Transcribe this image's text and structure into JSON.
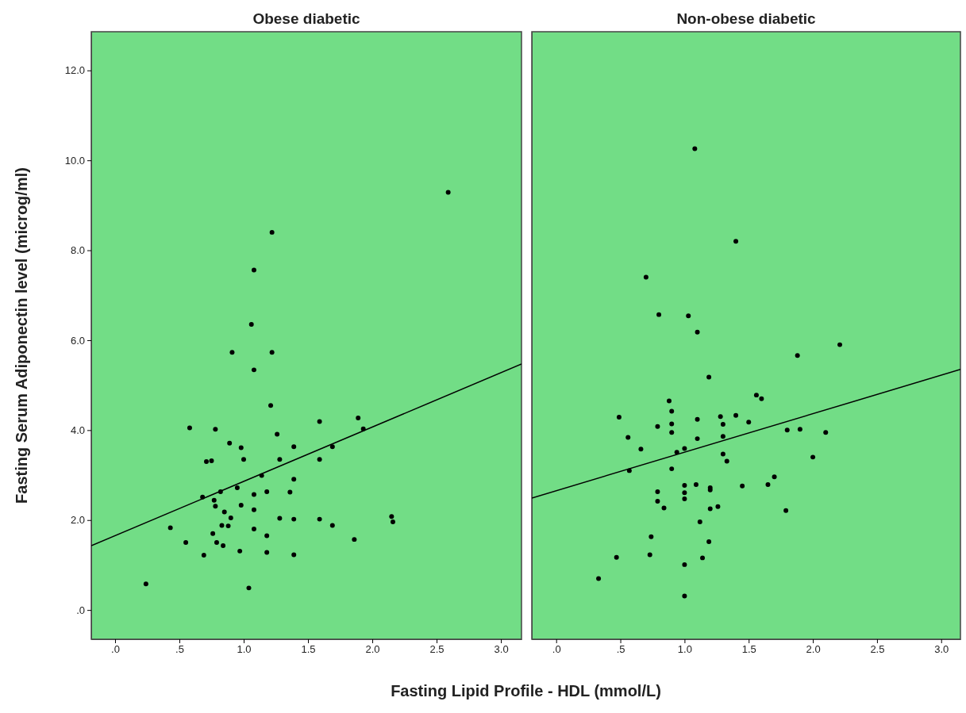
{
  "chart_data": [
    {
      "type": "scatter",
      "title": "Obese diabetic",
      "xlabel": "Fasting Lipid Profile - HDL (mmol/L)",
      "ylabel": "Fasting Serum Adiponectin level (microg/ml)",
      "grid": false,
      "xlim": [
        -0.185,
        3.16
      ],
      "ylim": [
        -0.65,
        12.86
      ],
      "xticks": [
        {
          "value": 0,
          "label": ".0"
        },
        {
          "value": 0.5,
          "label": ".5"
        },
        {
          "value": 1,
          "label": "1.0"
        },
        {
          "value": 1.5,
          "label": "1.5"
        },
        {
          "value": 2,
          "label": "2.0"
        },
        {
          "value": 2.5,
          "label": "2.5"
        },
        {
          "value": 3,
          "label": "3.0"
        }
      ],
      "yticks": [
        {
          "value": 0,
          "label": ".0"
        },
        {
          "value": 2,
          "label": "2.0"
        },
        {
          "value": 4,
          "label": "4.0"
        },
        {
          "value": 6,
          "label": "6.0"
        },
        {
          "value": 8,
          "label": "8.0"
        },
        {
          "value": 10,
          "label": "10.0"
        },
        {
          "value": 12,
          "label": "12.0"
        }
      ],
      "series": [
        {
          "type": "scatter",
          "marker": "circle",
          "color": "#000000",
          "x": [
            1.21,
            0.58,
            0.78,
            1.59,
            1.89,
            1.93,
            1.26,
            0.89,
            0.98,
            1.39,
            1.69,
            0.71,
            0.75,
            1.0,
            1.28,
            1.59,
            1.14,
            1.39,
            0.95,
            0.82,
            0.68,
            1.08,
            1.18,
            1.36,
            0.77,
            0.78,
            0.98,
            1.08,
            0.85,
            0.9,
            1.28,
            1.39,
            1.59,
            2.15,
            2.16,
            0.43,
            0.83,
            0.88,
            1.69,
            1.08,
            0.76,
            1.18,
            1.86,
            0.55,
            0.79,
            0.84,
            0.97,
            1.18,
            0.69,
            1.39,
            0.24,
            1.04,
            2.59,
            1.22,
            1.08,
            1.06,
            0.91,
            1.22,
            1.08
          ],
          "values": [
            4.55,
            4.05,
            4.02,
            4.19,
            4.27,
            4.03,
            3.91,
            3.71,
            3.61,
            3.63,
            3.63,
            3.3,
            3.32,
            3.35,
            3.35,
            3.35,
            2.99,
            2.91,
            2.72,
            2.63,
            2.51,
            2.57,
            2.63,
            2.62,
            2.44,
            2.31,
            2.33,
            2.23,
            2.18,
            2.05,
            2.04,
            2.02,
            2.02,
            2.08,
            1.96,
            1.83,
            1.88,
            1.87,
            1.88,
            1.8,
            1.7,
            1.65,
            1.57,
            1.5,
            1.5,
            1.43,
            1.31,
            1.28,
            1.22,
            1.23,
            0.58,
            0.49,
            9.29,
            8.4,
            7.56,
            6.35,
            5.73,
            5.73,
            5.34
          ]
        },
        {
          "type": "line",
          "color": "#000000",
          "x": [
            -0.185,
            3.16
          ],
          "values": [
            1.43,
            5.47
          ]
        }
      ]
    },
    {
      "type": "scatter",
      "title": "Non-obese diabetic",
      "grid": false,
      "tick_labels": "x",
      "xlim": [
        -0.19,
        3.15
      ],
      "ylim": [
        -0.65,
        12.86
      ],
      "xticks": [
        {
          "value": 0,
          "label": ".0"
        },
        {
          "value": 0.5,
          "label": ".5"
        },
        {
          "value": 1,
          "label": "1.0"
        },
        {
          "value": 1.5,
          "label": "1.5"
        },
        {
          "value": 2,
          "label": "2.0"
        },
        {
          "value": 2.5,
          "label": "2.5"
        },
        {
          "value": 3,
          "label": "3.0"
        }
      ],
      "series": [
        {
          "type": "scatter",
          "marker": "circle",
          "color": "#000000",
          "x": [
            1.08,
            1.4,
            0.7,
            0.8,
            1.03,
            1.1,
            2.21,
            1.88,
            1.19,
            1.56,
            1.6,
            0.88,
            0.9,
            0.49,
            1.1,
            1.28,
            1.4,
            1.5,
            0.79,
            0.9,
            1.3,
            0.9,
            1.8,
            1.9,
            2.1,
            0.56,
            1.1,
            1.3,
            0.66,
            1.0,
            0.94,
            1.3,
            1.33,
            2.0,
            0.9,
            0.57,
            1.7,
            1.65,
            1.45,
            1.0,
            1.09,
            1.2,
            1.2,
            0.79,
            1.0,
            1.0,
            0.79,
            0.84,
            1.26,
            1.2,
            1.79,
            1.12,
            0.74,
            1.19,
            0.47,
            0.73,
            1.14,
            1.0,
            0.33,
            1.0
          ],
          "values": [
            10.26,
            8.2,
            7.4,
            6.57,
            6.54,
            6.18,
            5.9,
            5.66,
            5.18,
            4.78,
            4.7,
            4.65,
            4.42,
            4.29,
            4.24,
            4.3,
            4.33,
            4.18,
            4.08,
            4.14,
            4.13,
            3.95,
            4.0,
            4.02,
            3.95,
            3.84,
            3.81,
            3.86,
            3.58,
            3.59,
            3.51,
            3.47,
            3.31,
            3.4,
            3.14,
            3.1,
            2.96,
            2.79,
            2.76,
            2.77,
            2.79,
            2.72,
            2.67,
            2.63,
            2.61,
            2.47,
            2.42,
            2.27,
            2.3,
            2.25,
            2.21,
            1.96,
            1.63,
            1.52,
            1.17,
            1.23,
            1.16,
            1.01,
            0.7,
            0.31
          ]
        },
        {
          "type": "line",
          "color": "#000000",
          "x": [
            -0.19,
            3.15
          ],
          "values": [
            2.49,
            5.35
          ]
        }
      ]
    }
  ]
}
